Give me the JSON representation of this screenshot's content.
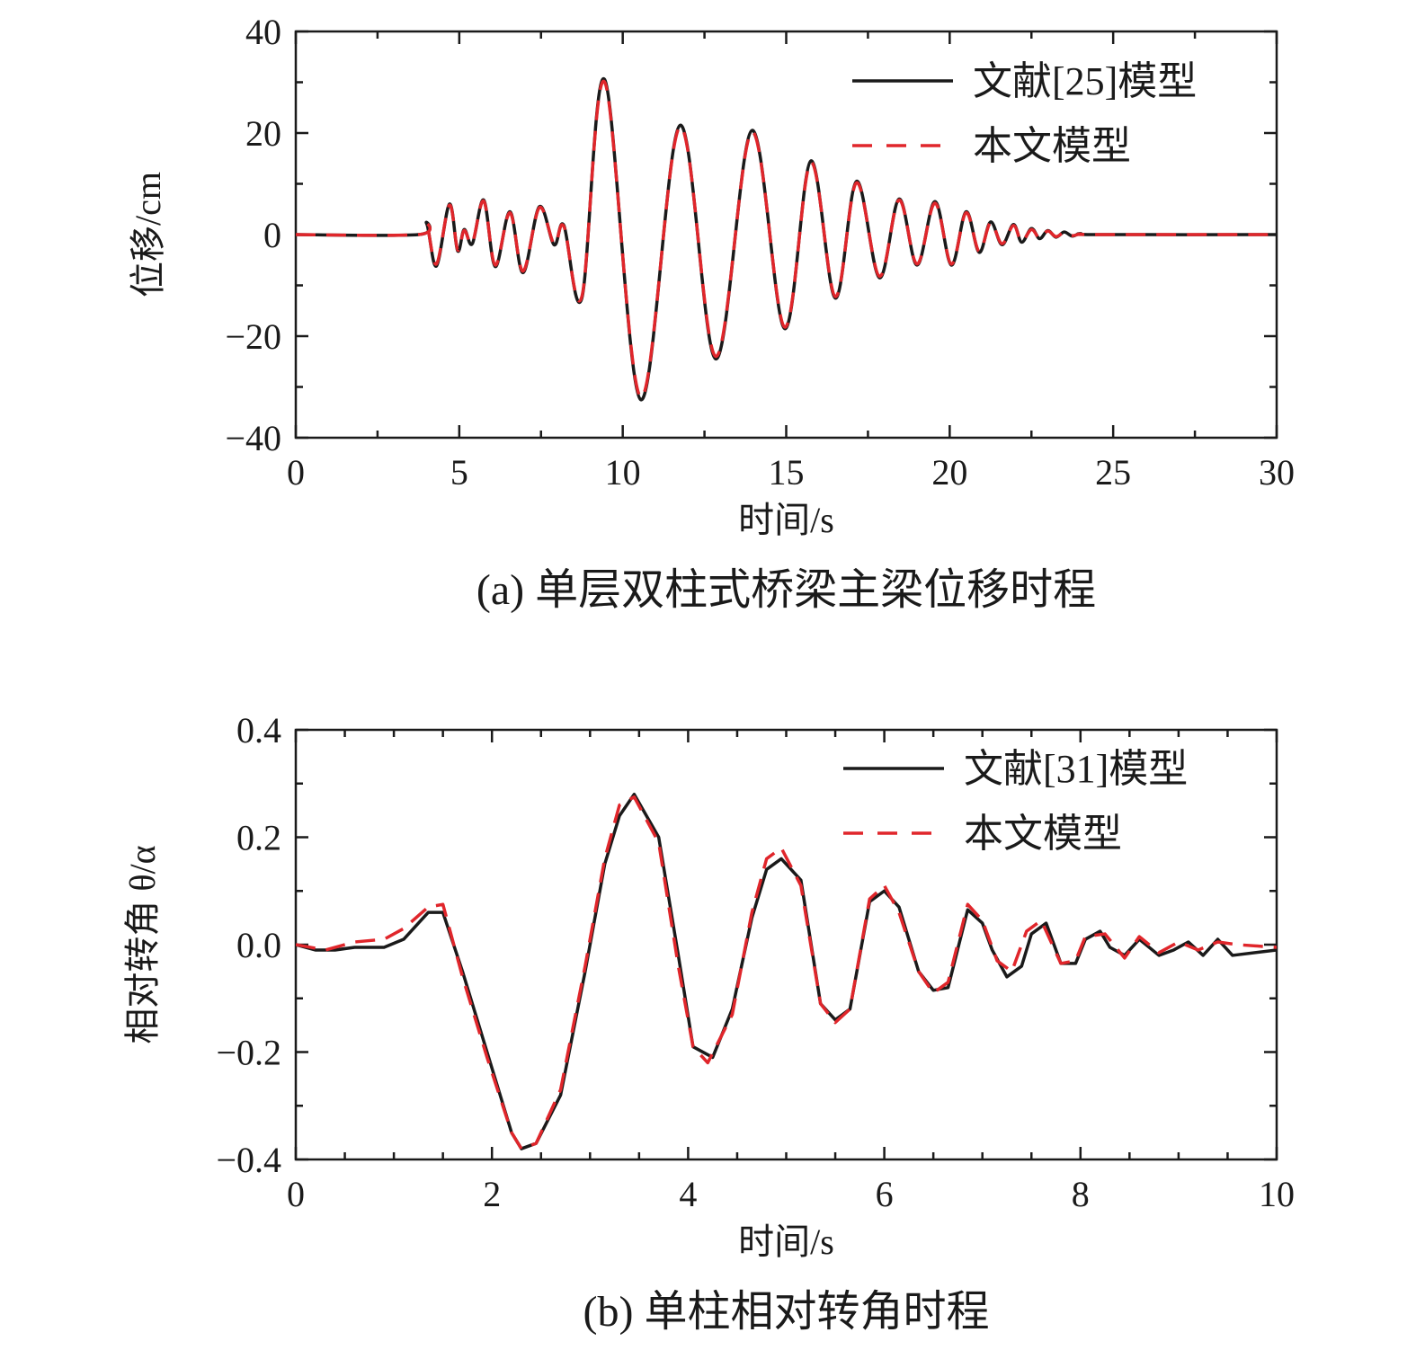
{
  "figure": {
    "panels": [
      {
        "caption": "(a) 单层双柱式桥梁主梁位移时程",
        "legend": {
          "placement": "top-right"
        }
      },
      {
        "caption": "(b) 单柱相对转角时程",
        "legend": {
          "placement": "top-right"
        }
      }
    ]
  },
  "colors": {
    "series_1": "#1a1a1a",
    "series_2": "#e0262b",
    "axes": "#1a1a1a"
  },
  "chart_data": [
    {
      "type": "line",
      "title": "(a) 单层双柱式桥梁主梁位移时程",
      "xlabel": "时间/s",
      "ylabel": "位移/cm",
      "xlim": [
        0,
        30
      ],
      "ylim": [
        -40,
        40
      ],
      "xticks": [
        0,
        5,
        10,
        15,
        20,
        25,
        30
      ],
      "xtick_labels": [
        "0",
        "5",
        "10",
        "15",
        "20",
        "25",
        "30"
      ],
      "yticks": [
        -40,
        -20,
        0,
        20,
        40
      ],
      "ytick_labels": [
        "−40",
        "−20",
        "0",
        "20",
        "40"
      ],
      "x_minor_step": 2.5,
      "y_minor_step": 10,
      "grid": false,
      "legend_position": "top-right",
      "series": [
        {
          "name": "文献[25]模型",
          "style": "solid",
          "color": "#1a1a1a",
          "x": [
            0,
            3.75,
            4.0,
            4.3,
            4.7,
            4.95,
            5.15,
            5.4,
            5.75,
            6.1,
            6.55,
            6.95,
            7.45,
            7.9,
            8.2,
            8.75,
            9.45,
            10.55,
            11.75,
            12.85,
            13.95,
            14.95,
            15.75,
            16.5,
            17.15,
            17.85,
            18.45,
            19.0,
            19.55,
            20.05,
            20.5,
            20.9,
            21.25,
            21.6,
            21.95,
            22.2,
            22.5,
            22.75,
            23.0,
            23.25,
            23.5,
            23.75,
            24.0,
            24.5,
            30
          ],
          "y": [
            0,
            0,
            2.2,
            -6.2,
            6.0,
            -3.2,
            1.0,
            -1.8,
            6.8,
            -6.3,
            4.5,
            -7.5,
            5.5,
            -2.0,
            1.8,
            -12.5,
            30.5,
            -32.5,
            21.5,
            -24.5,
            20.5,
            -18.5,
            14.5,
            -12.5,
            10.5,
            -8.5,
            7.0,
            -6.0,
            6.5,
            -6.0,
            4.5,
            -3.5,
            2.5,
            -2.0,
            2.0,
            -1.5,
            1.2,
            -0.8,
            0.8,
            -0.5,
            0.5,
            -0.3,
            0.2,
            0,
            0
          ]
        },
        {
          "name": "本文模型",
          "style": "dashed",
          "color": "#e0262b",
          "x": [
            0,
            3.75,
            4.0,
            4.3,
            4.7,
            4.95,
            5.15,
            5.4,
            5.75,
            6.1,
            6.55,
            6.95,
            7.45,
            7.9,
            8.2,
            8.75,
            9.45,
            10.55,
            11.75,
            12.85,
            13.95,
            14.95,
            15.75,
            16.5,
            17.15,
            17.85,
            18.45,
            19.0,
            19.55,
            20.05,
            20.5,
            20.9,
            21.25,
            21.6,
            21.95,
            22.2,
            22.5,
            22.75,
            23.0,
            23.25,
            23.5,
            23.75,
            24.0,
            24.5,
            30
          ],
          "y": [
            0,
            0,
            2.0,
            -5.8,
            5.8,
            -3.0,
            0.8,
            -1.6,
            6.6,
            -6.0,
            4.3,
            -7.2,
            5.3,
            -1.8,
            1.6,
            -12.2,
            30.0,
            -32.0,
            21.2,
            -24.0,
            20.2,
            -18.2,
            14.2,
            -12.2,
            10.2,
            -8.2,
            6.8,
            -5.8,
            6.2,
            -5.8,
            4.3,
            -3.3,
            2.3,
            -1.8,
            1.8,
            -1.3,
            1.0,
            -0.7,
            0.7,
            -0.4,
            0.4,
            -0.2,
            0.1,
            0,
            0
          ]
        }
      ]
    },
    {
      "type": "line",
      "title": "(b) 单柱相对转角时程",
      "xlabel": "时间/s",
      "ylabel": "相对转角 θ/α",
      "xlim": [
        0,
        10
      ],
      "ylim": [
        -0.4,
        0.4
      ],
      "xticks": [
        0,
        2,
        4,
        6,
        8,
        10
      ],
      "xtick_labels": [
        "0",
        "2",
        "4",
        "6",
        "8",
        "10"
      ],
      "yticks": [
        -0.4,
        -0.2,
        0.0,
        0.2,
        0.4
      ],
      "ytick_labels": [
        "−0.4",
        "−0.2",
        "0.0",
        "0.2",
        "0.4"
      ],
      "x_minor_step": 0.5,
      "y_minor_step": 0.1,
      "grid": false,
      "legend_position": "top-right",
      "series": [
        {
          "name": "文献[31]模型",
          "style": "solid",
          "color": "#1a1a1a",
          "x": [
            0,
            0.2,
            0.4,
            0.6,
            0.9,
            1.1,
            1.35,
            1.5,
            1.7,
            1.95,
            2.2,
            2.3,
            2.45,
            2.7,
            2.95,
            3.15,
            3.3,
            3.45,
            3.7,
            3.9,
            4.05,
            4.25,
            4.45,
            4.65,
            4.8,
            4.95,
            5.15,
            5.35,
            5.5,
            5.65,
            5.85,
            6.0,
            6.15,
            6.35,
            6.5,
            6.65,
            6.85,
            7.0,
            7.1,
            7.25,
            7.4,
            7.5,
            7.65,
            7.8,
            7.95,
            8.05,
            8.2,
            8.3,
            8.45,
            8.6,
            8.8,
            8.95,
            9.1,
            9.25,
            9.4,
            9.55,
            10
          ],
          "y": [
            0,
            -0.01,
            -0.01,
            -0.005,
            -0.005,
            0.01,
            0.06,
            0.06,
            -0.05,
            -0.2,
            -0.35,
            -0.38,
            -0.37,
            -0.28,
            -0.05,
            0.15,
            0.24,
            0.28,
            0.2,
            -0.02,
            -0.19,
            -0.21,
            -0.12,
            0.05,
            0.14,
            0.16,
            0.12,
            -0.11,
            -0.14,
            -0.12,
            0.08,
            0.1,
            0.07,
            -0.05,
            -0.085,
            -0.08,
            0.065,
            0.04,
            -0.01,
            -0.06,
            -0.04,
            0.02,
            0.04,
            -0.035,
            -0.035,
            0.01,
            0.025,
            -0.005,
            -0.02,
            0.01,
            -0.02,
            -0.01,
            0.005,
            -0.02,
            0.01,
            -0.02,
            -0.01
          ]
        },
        {
          "name": "本文模型",
          "style": "dashed",
          "color": "#e0262b",
          "x": [
            0,
            0.3,
            0.6,
            0.9,
            1.1,
            1.35,
            1.5,
            1.7,
            1.95,
            2.2,
            2.3,
            2.45,
            2.7,
            2.95,
            3.15,
            3.3,
            3.45,
            3.7,
            3.9,
            4.05,
            4.2,
            4.45,
            4.65,
            4.8,
            4.95,
            5.15,
            5.35,
            5.5,
            5.65,
            5.85,
            6.0,
            6.15,
            6.35,
            6.5,
            6.65,
            6.85,
            7.0,
            7.15,
            7.3,
            7.45,
            7.6,
            7.8,
            7.95,
            8.05,
            8.25,
            8.45,
            8.6,
            8.8,
            9.0,
            9.2,
            9.4,
            9.6,
            10
          ],
          "y": [
            0,
            -0.01,
            0.005,
            0.01,
            0.03,
            0.07,
            0.075,
            -0.06,
            -0.21,
            -0.35,
            -0.38,
            -0.37,
            -0.27,
            -0.04,
            0.16,
            0.26,
            0.275,
            0.19,
            -0.04,
            -0.19,
            -0.22,
            -0.13,
            0.06,
            0.16,
            0.18,
            0.11,
            -0.11,
            -0.145,
            -0.12,
            0.085,
            0.11,
            0.06,
            -0.05,
            -0.09,
            -0.07,
            0.075,
            0.045,
            -0.03,
            -0.05,
            0.025,
            0.045,
            -0.035,
            -0.03,
            0.015,
            0.02,
            -0.025,
            0.015,
            -0.015,
            0.005,
            -0.01,
            0.005,
            0.0,
            -0.005
          ]
        }
      ]
    }
  ]
}
